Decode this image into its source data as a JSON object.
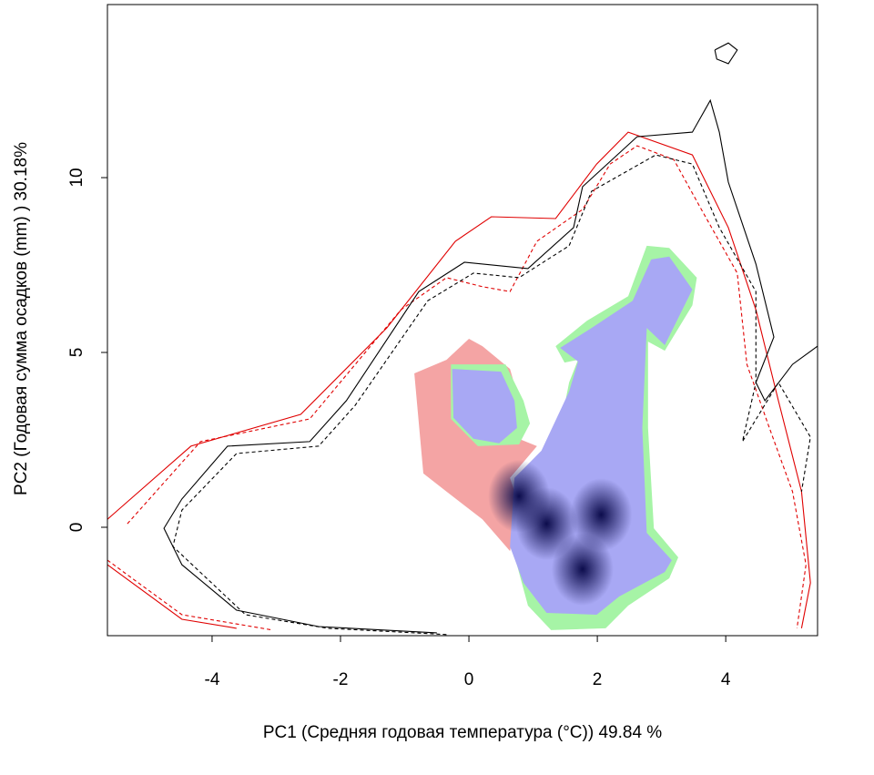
{
  "chart_data": {
    "type": "contour",
    "xlabel": "PC1 (Средняя годовая температура (°C)) 49.84 %",
    "ylabel": "PC2 (Годовая сумма осадков  (mm) ) 30.18%",
    "xlim": [
      -5.63,
      5.43
    ],
    "ylim": [
      -3.1,
      14.95
    ],
    "xticks": [
      -4,
      -2,
      0,
      2,
      4
    ],
    "yticks": [
      0,
      5,
      10
    ],
    "regions": [
      {
        "color": "#f4a4a4",
        "x": [
          -0.85,
          -0.35,
          0,
          0.21,
          0.64,
          0.78,
          0.71,
          1.06,
          0.64,
          0.78,
          0.64,
          0.21,
          -0.35,
          -0.71
        ],
        "y": [
          4.4,
          4.79,
          5.39,
          5.18,
          4.53,
          3.62,
          2.58,
          2.32,
          1.41,
          0.63,
          -0.68,
          0.23,
          1.02,
          1.54
        ]
      },
      {
        "color": "#a6f4a6",
        "x": [
          1.35,
          1.84,
          2.48,
          2.77,
          3.12,
          3.55,
          3.48,
          3.05,
          2.79,
          2.79,
          2.88,
          3.26,
          3.12,
          2.48,
          2.13,
          1.28,
          0.92,
          0.71,
          0.85,
          1.21,
          1.42,
          1.56,
          1.7,
          1.49
        ],
        "y": [
          5.18,
          5.91,
          6.61,
          8.05,
          7.99,
          7.14,
          6.35,
          5.05,
          5.31,
          2.84,
          -0.03,
          -0.86,
          -1.46,
          -2.24,
          -2.89,
          -2.94,
          -2.24,
          -0.81,
          1.54,
          2.32,
          2.84,
          4.14,
          4.79,
          4.71
        ]
      },
      {
        "color": "#a6f4a6",
        "x": [
          -0.28,
          0.57,
          0.85,
          0.95,
          0.78,
          0.14,
          -0.28
        ],
        "y": [
          4.66,
          4.66,
          3.62,
          2.97,
          2.37,
          2.32,
          3.1
        ]
      },
      {
        "color": "#a8a8f4",
        "x": [
          1.42,
          1.91,
          2.55,
          2.84,
          3.12,
          3.48,
          3.05,
          2.77,
          2.7,
          2.77,
          3.16,
          3.05,
          2.34,
          1.99,
          1.21,
          0.85,
          0.64,
          0.71,
          1.13,
          1.56,
          1.7
        ],
        "y": [
          5.13,
          5.7,
          6.48,
          7.66,
          7.74,
          6.8,
          5.21,
          5.7,
          2.84,
          -0.16,
          -0.94,
          -1.28,
          -1.98,
          -2.5,
          -2.45,
          -1.59,
          -0.55,
          1.41,
          2.19,
          3.88,
          4.74
        ]
      },
      {
        "color": "#a8a8f4",
        "x": [
          -0.26,
          0.5,
          0.71,
          0.75,
          0.47,
          0.07,
          -0.24
        ],
        "y": [
          4.53,
          4.45,
          3.62,
          2.84,
          2.4,
          2.53,
          3.13
        ]
      }
    ],
    "peaks": {
      "color": "#0c0c4c",
      "x": [
        0.78,
        1.21,
        2.06,
        1.77
      ],
      "y": [
        0.89,
        0.1,
        0.36,
        -1.2
      ]
    },
    "contours": [
      {
        "color": "#e00000",
        "dash": false,
        "x": [
          -5.63,
          -4.33,
          -2.62,
          -1.28,
          -0.21,
          0.35,
          1.35,
          1.99,
          2.48,
          3.48,
          4.04,
          4.47,
          4.82,
          5.18,
          5.32,
          5.18,
          null,
          -5.63,
          -4.47,
          -3.62
        ],
        "y": [
          0.23,
          2.32,
          3.23,
          5.7,
          8.18,
          8.88,
          8.83,
          10.39,
          11.3,
          10.65,
          8.57,
          6.22,
          3.62,
          1.02,
          -1.59,
          -2.89,
          null,
          -1.07,
          -2.63,
          -2.89
        ]
      },
      {
        "color": "#e00000",
        "dash": true,
        "x": [
          -5.32,
          -4.18,
          -2.48,
          -1.06,
          -0.35,
          0.21,
          0.64,
          1.06,
          1.77,
          2.2,
          2.62,
          3.19,
          3.62,
          4.18,
          4.33,
          4.68,
          5.04,
          5.25,
          5.11,
          null,
          -5.63,
          -4.47,
          -3.05
        ],
        "y": [
          0.1,
          2.45,
          3.1,
          6.22,
          7.14,
          6.88,
          6.74,
          8.18,
          9.09,
          10.39,
          10.91,
          10.52,
          9.09,
          7.27,
          4.66,
          2.84,
          1.02,
          -1.07,
          -2.89,
          null,
          -0.94,
          -2.5,
          -2.94
        ]
      },
      {
        "color": "#000000",
        "dash": false,
        "x": [
          -0.5,
          -2.34,
          -3.62,
          -4.47,
          -4.75,
          -4.47,
          -3.76,
          -2.48,
          -1.91,
          -0.78,
          -0.07,
          0.92,
          1.63,
          1.77,
          2.62,
          3.48,
          3.76,
          3.9,
          4.04,
          4.47,
          4.75,
          4.47,
          4.61,
          5.04,
          5.43,
          null,
          3.83,
          4.04,
          4.18,
          4.04,
          3.86,
          3.83
        ],
        "y": [
          -3.02,
          -2.84,
          -2.37,
          -1.07,
          -0.03,
          0.81,
          2.32,
          2.45,
          3.62,
          6.74,
          7.58,
          7.4,
          8.57,
          9.74,
          11.17,
          11.3,
          12.21,
          11.3,
          9.87,
          7.53,
          5.44,
          4.14,
          3.62,
          4.66,
          5.18,
          null,
          13.65,
          13.85,
          13.65,
          13.26,
          13.39,
          13.65
        ]
      },
      {
        "color": "#000000",
        "dash": true,
        "x": [
          -0.35,
          -2.2,
          -3.48,
          -4.61,
          -4.47,
          -3.62,
          -2.34,
          -1.77,
          -0.64,
          0.07,
          0.78,
          1.56,
          1.91,
          2.91,
          3.48,
          3.9,
          4.47,
          4.47,
          4.26,
          4.82,
          5.32,
          5.18
        ],
        "y": [
          -3.07,
          -2.89,
          -2.5,
          -0.55,
          0.49,
          2.11,
          2.32,
          3.49,
          6.48,
          7.27,
          7.14,
          8.05,
          9.61,
          10.65,
          10.39,
          8.57,
          6.74,
          4.14,
          2.45,
          4.14,
          2.58,
          1.02
        ]
      }
    ]
  }
}
